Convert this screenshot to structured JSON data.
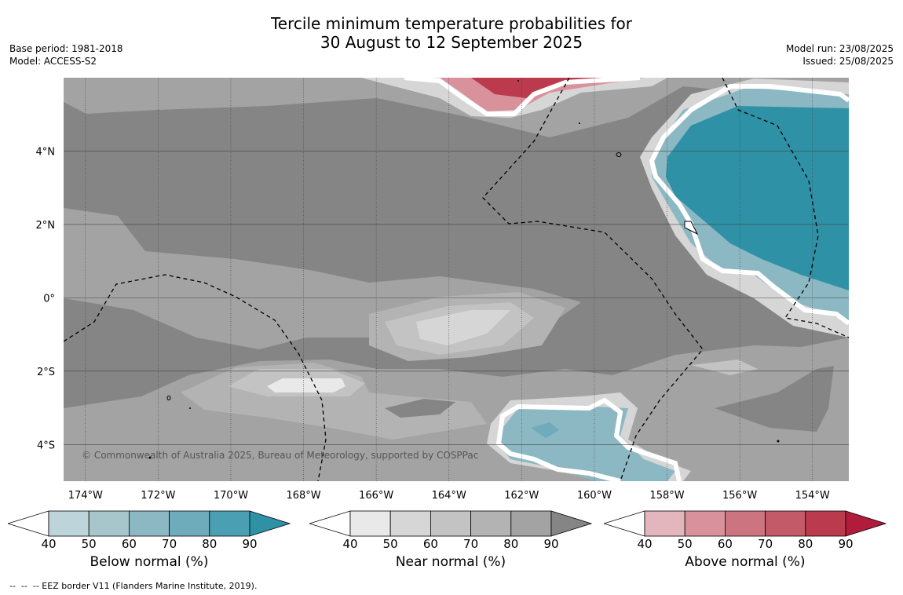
{
  "title_line1": "Tercile minimum temperature probabilities for",
  "title_line2": "30 August to 12 September 2025",
  "base_period": "Base period: 1981-2018",
  "model": "Model: ACCESS-S2",
  "model_run": "Model run: 23/08/2025",
  "issued": "Issued: 25/08/2025",
  "copyright": "© Commonwealth of Australia 2025, Bureau of Meteorology, supported by COSPPac",
  "footnote": "--  --  -- EEZ border V11 (Flanders Marine Institute, 2019).",
  "x_ticks": [
    "174°W",
    "172°W",
    "170°W",
    "168°W",
    "166°W",
    "164°W",
    "162°W",
    "160°W",
    "158°W",
    "156°W",
    "154°W"
  ],
  "x_tick_values": [
    -174,
    -172,
    -170,
    -168,
    -166,
    -164,
    -162,
    -160,
    -158,
    -156,
    -154
  ],
  "y_ticks": [
    "4°N",
    "2°N",
    "0°",
    "2°S",
    "4°S"
  ],
  "y_tick_values": [
    4,
    2,
    0,
    -2,
    -4
  ],
  "lon_range": [
    -174.6,
    -153.0
  ],
  "lat_range": [
    -5.0,
    6.0
  ],
  "colorbars": [
    {
      "title": "Below normal (%)",
      "labels": [
        "40",
        "50",
        "60",
        "70",
        "80",
        "90"
      ],
      "colors": [
        "#ffffff",
        "#bcd4da",
        "#a6c6cb",
        "#8cb8c4",
        "#6eabbb",
        "#4aa0b2",
        "#2e91a6"
      ]
    },
    {
      "title": "Near normal (%)",
      "labels": [
        "40",
        "50",
        "60",
        "70",
        "80",
        "90"
      ],
      "colors": [
        "#ffffff",
        "#e9e9e9",
        "#d6d6d6",
        "#c3c3c3",
        "#b3b3b3",
        "#a3a3a3",
        "#858585"
      ]
    },
    {
      "title": "Above normal (%)",
      "labels": [
        "40",
        "50",
        "60",
        "70",
        "80",
        "90"
      ],
      "colors": [
        "#ffffff",
        "#e3b6bd",
        "#d9929c",
        "#cc7580",
        "#c35a68",
        "#bb3a4e",
        "#b11c3a"
      ]
    }
  ]
}
